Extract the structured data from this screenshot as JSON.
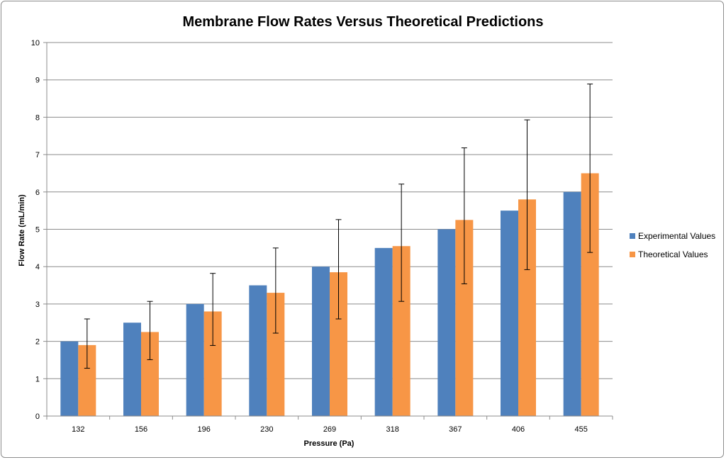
{
  "chart_data": {
    "type": "bar",
    "title": "Membrane Flow Rates Versus Theoretical Predictions",
    "xlabel": "Pressure (Pa)",
    "ylabel": "Flow Rate (mL/min)",
    "ylim": [
      0,
      10
    ],
    "y_ticks": [
      "0",
      "1",
      "2",
      "3",
      "4",
      "5",
      "6",
      "7",
      "8",
      "9",
      "10"
    ],
    "grid": true,
    "legend_position": "right",
    "categories": [
      "132",
      "156",
      "196",
      "230",
      "269",
      "318",
      "367",
      "406",
      "455"
    ],
    "series": [
      {
        "name": "Experimental Values",
        "color": "#4f81bd",
        "values": [
          2.0,
          2.5,
          3.0,
          3.5,
          4.0,
          4.5,
          5.0,
          5.5,
          6.0
        ]
      },
      {
        "name": "Theoretical Values",
        "color": "#f79646",
        "values": [
          1.9,
          2.25,
          2.8,
          3.3,
          3.85,
          4.55,
          5.25,
          5.8,
          6.5
        ],
        "error_low": [
          1.28,
          1.51,
          1.89,
          2.22,
          2.6,
          3.07,
          3.54,
          3.92,
          4.38
        ],
        "error_high": [
          2.6,
          3.07,
          3.82,
          4.5,
          5.26,
          6.21,
          7.18,
          7.93,
          8.89
        ]
      }
    ]
  }
}
